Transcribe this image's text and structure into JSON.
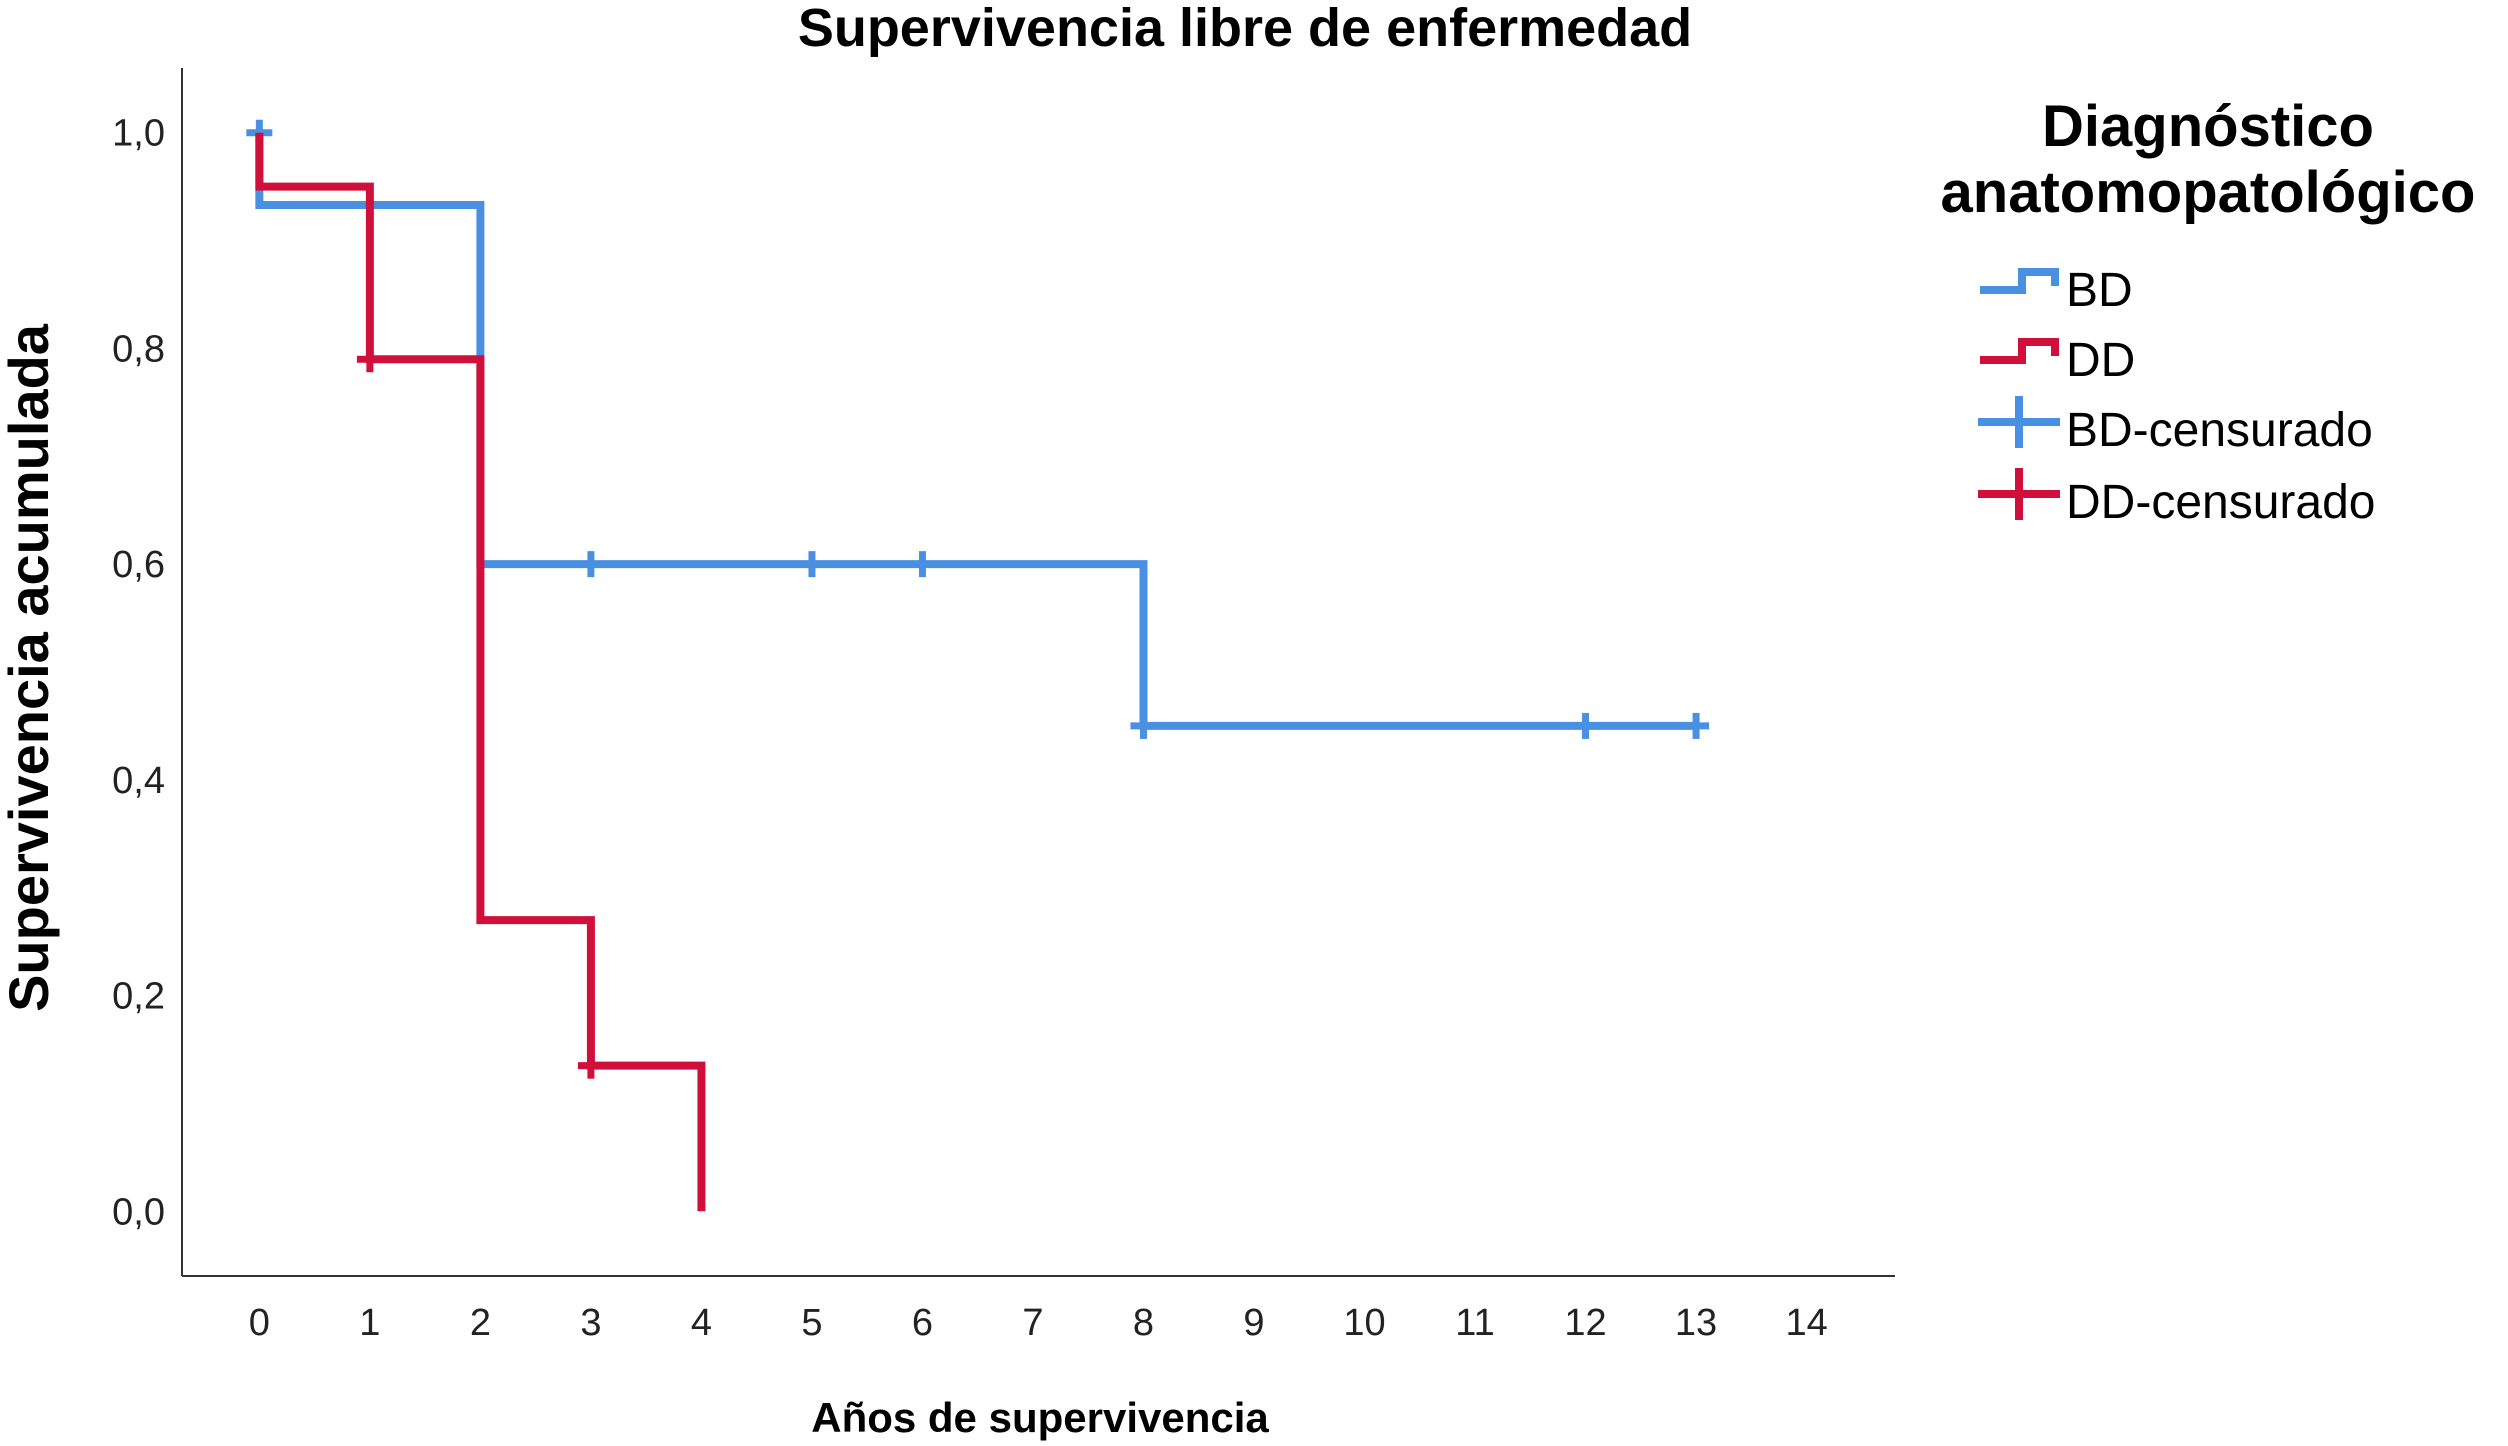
{
  "chart_data": {
    "type": "line",
    "subtype": "kaplan-meier step",
    "title": "Supervivencia libre de enfermedad",
    "xlabel": "Años de supervivencia",
    "ylabel": "Supervivencia acumulada",
    "xlim": [
      -0.7,
      14.8
    ],
    "ylim": [
      -0.06,
      1.06
    ],
    "x_ticks": [
      0,
      1,
      2,
      3,
      4,
      5,
      6,
      7,
      8,
      9,
      10,
      11,
      12,
      13,
      14
    ],
    "x_tick_labels": [
      "0",
      "1",
      "2",
      "3",
      "4",
      "5",
      "6",
      "7",
      "8",
      "9",
      "10",
      "11",
      "12",
      "13",
      "14"
    ],
    "y_ticks": [
      0.0,
      0.2,
      0.4,
      0.6,
      0.8,
      1.0
    ],
    "y_tick_labels": [
      "0,0",
      "0,2",
      "0,4",
      "0,6",
      "0,8",
      "1,0"
    ],
    "grid": false,
    "legend": {
      "title_lines": [
        "Diagnóstico",
        "anatomopatológico"
      ],
      "placement": "right",
      "entries": [
        {
          "label": "BD",
          "kind": "step",
          "series": "BD"
        },
        {
          "label": "DD",
          "kind": "step",
          "series": "DD"
        },
        {
          "label": "BD-censurado",
          "kind": "censor",
          "series": "BD"
        },
        {
          "label": "DD-censurado",
          "kind": "censor",
          "series": "DD"
        }
      ]
    },
    "series": [
      {
        "name": "BD",
        "color": "#4a90e2",
        "steps": [
          [
            0,
            1.0
          ],
          [
            0,
            0.933
          ],
          [
            2,
            0.933
          ],
          [
            2,
            0.6
          ],
          [
            8,
            0.6
          ],
          [
            8,
            0.45
          ],
          [
            13,
            0.45
          ]
        ],
        "censored": [
          [
            0,
            1.0
          ],
          [
            1,
            0.933
          ],
          [
            3,
            0.6
          ],
          [
            5,
            0.6
          ],
          [
            6,
            0.6
          ],
          [
            8,
            0.45
          ],
          [
            12,
            0.45
          ],
          [
            13,
            0.45
          ]
        ]
      },
      {
        "name": "DD",
        "color": "#d0103a",
        "steps": [
          [
            0,
            1.0
          ],
          [
            0,
            0.95
          ],
          [
            1,
            0.95
          ],
          [
            1,
            0.79
          ],
          [
            2,
            0.79
          ],
          [
            2,
            0.27
          ],
          [
            3,
            0.27
          ],
          [
            3,
            0.135
          ],
          [
            4,
            0.135
          ],
          [
            4,
            0.0
          ]
        ],
        "censored": [
          [
            1,
            0.79
          ],
          [
            3,
            0.135
          ]
        ]
      }
    ]
  }
}
